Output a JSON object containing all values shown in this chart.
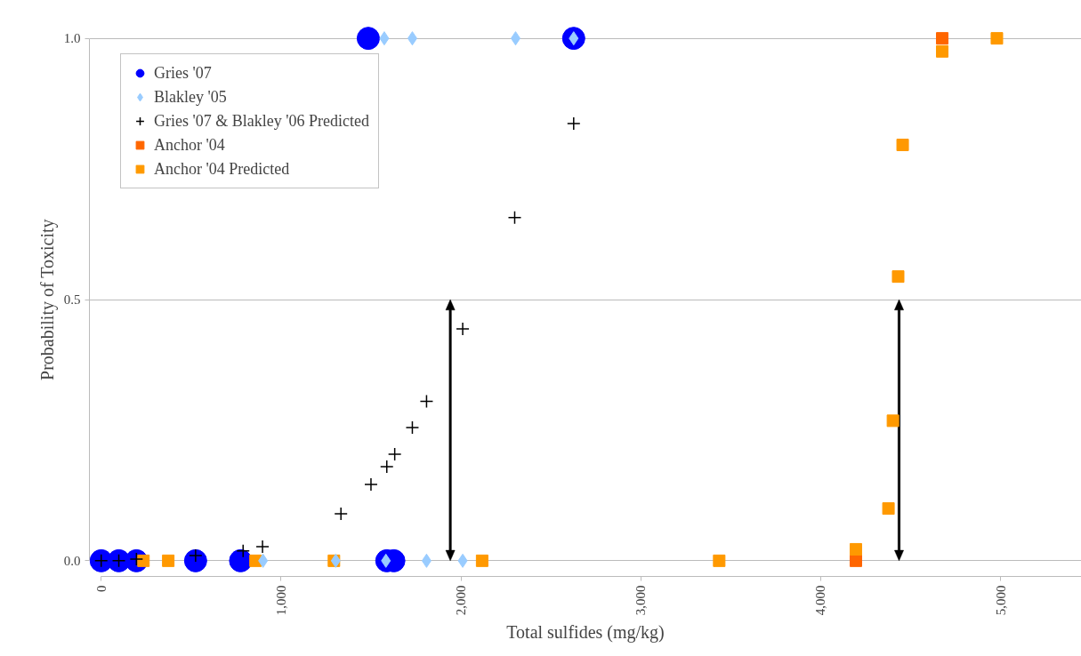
{
  "chart_data": {
    "type": "scatter",
    "xlabel": "Total sulfides (mg/kg)",
    "ylabel": "Probability of Toxicity",
    "xlim": [
      0,
      5450
    ],
    "ylim": [
      0,
      1
    ],
    "xticks": [
      0,
      {
        "value": 1000,
        "label": "1,000"
      },
      {
        "value": 2000,
        "label": "2,000"
      },
      {
        "value": 3000,
        "label": "3,000"
      },
      {
        "value": 4000,
        "label": "4,000"
      },
      {
        "value": 5000,
        "label": "5,000"
      }
    ],
    "yticks": [
      {
        "value": 0,
        "label": "0.0"
      },
      {
        "value": 0.5,
        "label": "0.5"
      },
      {
        "value": 1,
        "label": "1.0"
      }
    ],
    "grid": "y",
    "legend": "top left",
    "series": [
      {
        "name": "Gries '07",
        "color": "#0000ff",
        "marker": "circle",
        "x": [
          0,
          98,
          196,
          525,
          775,
          1588,
          1627,
          1485,
          2627
        ],
        "values": [
          0,
          0,
          0,
          0,
          0,
          0,
          0,
          1,
          1
        ]
      },
      {
        "name": "Blakley '05",
        "color": "#99ccff",
        "marker": "diamond",
        "x": [
          900,
          1304,
          1583,
          1809,
          2010,
          1574,
          1730,
          2304,
          2627
        ],
        "values": [
          0,
          0,
          0,
          0,
          0,
          1,
          1,
          1,
          1
        ]
      },
      {
        "name": "Gries '07 & Blakley '06 Predicted",
        "color": "#000000",
        "marker": "cross",
        "x": [
          0,
          98,
          196,
          525,
          789,
          897,
          1333,
          1500,
          1588,
          1632,
          1730,
          1809,
          2010,
          2299,
          2627
        ],
        "values": [
          0,
          0,
          0.003,
          0.01,
          0.019,
          0.027,
          0.09,
          0.146,
          0.18,
          0.204,
          0.255,
          0.305,
          0.444,
          0.657,
          0.837
        ]
      },
      {
        "name": "Anchor '04",
        "color": "#ff6600",
        "marker": "square",
        "x": [
          4196,
          4676
        ],
        "values": [
          0,
          1
        ]
      },
      {
        "name": "Anchor '04 Predicted",
        "color": "#ff9900",
        "marker": "square",
        "x": [
          235,
          373,
          858,
          1294,
          2118,
          3436,
          4196,
          4377,
          4402,
          4431,
          4456,
          4676,
          4980
        ],
        "values": [
          0,
          0,
          0,
          0,
          0,
          0,
          0.022,
          0.1,
          0.268,
          0.544,
          0.796,
          0.975,
          1
        ]
      }
    ],
    "ref_lines": [
      {
        "axis": "x",
        "value": 1941,
        "color": "#000000"
      },
      {
        "axis": "x",
        "value": 4436,
        "color": "#000000"
      }
    ]
  }
}
